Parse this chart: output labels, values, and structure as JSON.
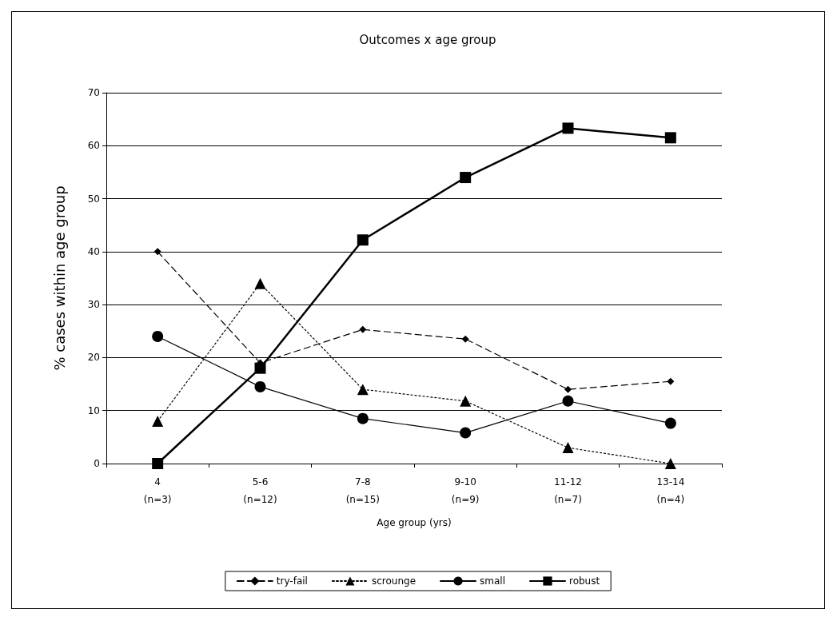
{
  "chart_data": {
    "type": "line",
    "title": "Outcomes x age group",
    "xlabel": "Age group (yrs)",
    "ylabel": "% cases within age group",
    "categories": [
      "4\n(n=3)",
      "5-6\n(n=12)",
      "7-8\n(n=15)",
      "9-10\n(n=9)",
      "11-12\n(n=7)",
      "13-14\n(n=4)"
    ],
    "series": [
      {
        "name": "try-fail",
        "color": "#000000",
        "marker": "diamond",
        "line_style": "dashed",
        "values": [
          40,
          19,
          25.3,
          23.5,
          14,
          15.5
        ]
      },
      {
        "name": "scrounge",
        "color": "#000000",
        "marker": "triangle",
        "line_style": "dotted",
        "values": [
          8,
          34,
          14,
          11.8,
          3,
          0
        ]
      },
      {
        "name": "small",
        "color": "#000000",
        "marker": "circle",
        "line_style": "solid",
        "values": [
          24,
          14.5,
          8.5,
          5.8,
          11.8,
          7.6
        ]
      },
      {
        "name": "robust",
        "color": "#000000",
        "marker": "square",
        "line_style": "solid",
        "values": [
          0,
          18,
          42.2,
          54,
          63.3,
          61.5
        ]
      }
    ],
    "ylim": [
      0,
      70
    ],
    "yticks": [
      0,
      10,
      20,
      30,
      40,
      50,
      60,
      70
    ],
    "grid": "y",
    "legend": "bottom"
  }
}
